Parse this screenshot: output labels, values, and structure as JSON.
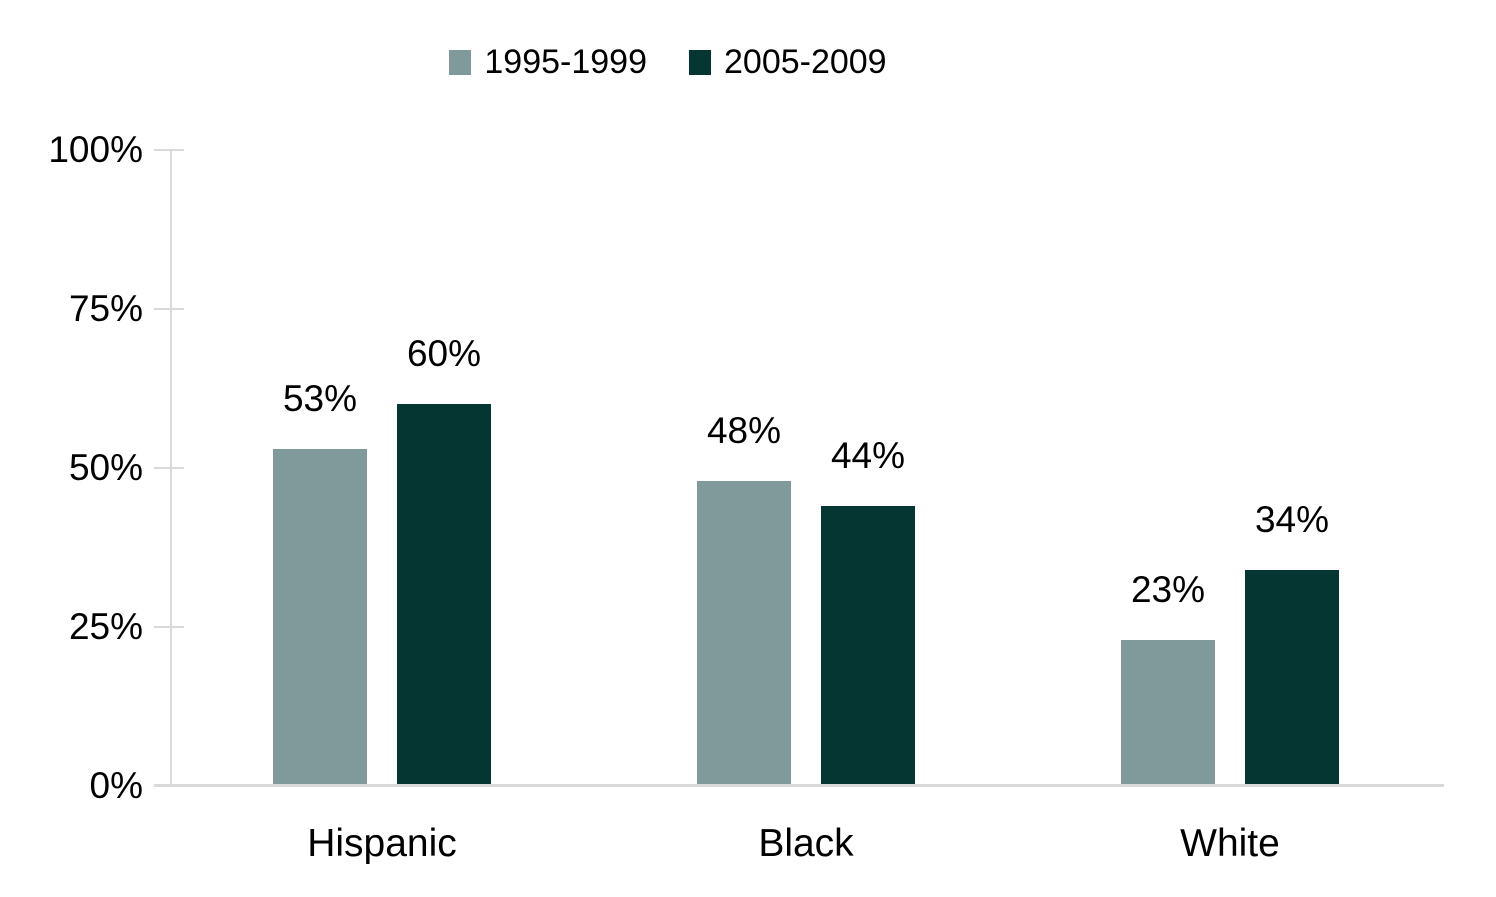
{
  "chart_data": {
    "type": "bar",
    "title": "",
    "xlabel": "",
    "ylabel": "",
    "categories": [
      "Hispanic",
      "Black",
      "White"
    ],
    "series": [
      {
        "name": "1995-1999",
        "color": "#80999b",
        "values": [
          53,
          48,
          23
        ]
      },
      {
        "name": "2005-2009",
        "color": "#053632",
        "values": [
          60,
          44,
          34
        ]
      }
    ],
    "value_labels": [
      [
        "53%",
        "60%"
      ],
      [
        "48%",
        "44%"
      ],
      [
        "23%",
        "34%"
      ]
    ],
    "unit": "%",
    "ylim": [
      0,
      100
    ],
    "yticks": [
      {
        "label": "0%",
        "value": 0
      },
      {
        "label": "25%",
        "value": 25
      },
      {
        "label": "50%",
        "value": 50
      },
      {
        "label": "75%",
        "value": 75
      },
      {
        "label": "100%",
        "value": 100
      }
    ],
    "grid": false,
    "legend_position": "top-center"
  },
  "colors": {
    "axis": "#d9d9d9",
    "text": "#000000",
    "background": "#ffffff"
  }
}
